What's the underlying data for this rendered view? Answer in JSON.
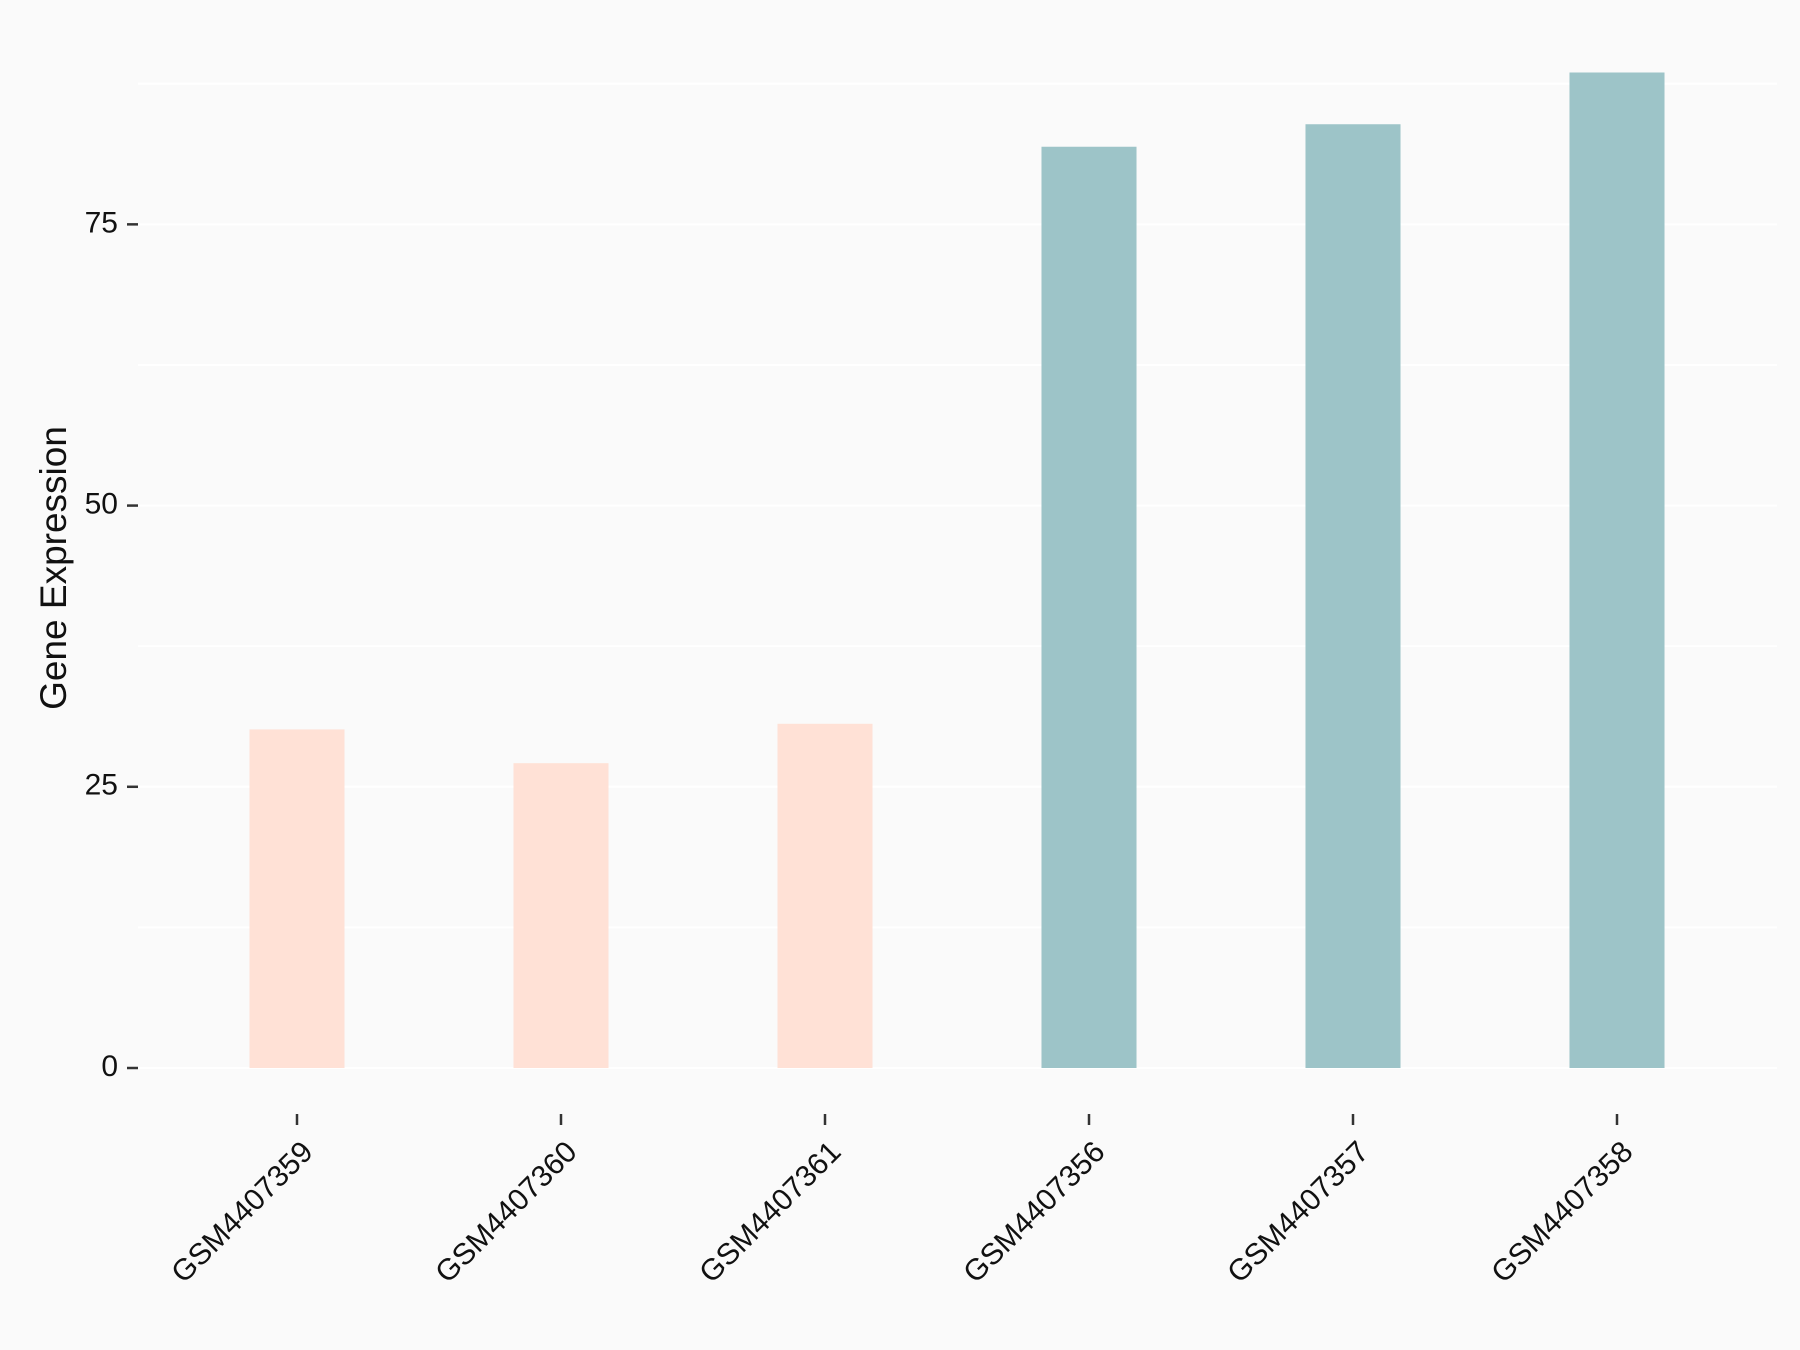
{
  "chart_data": {
    "type": "bar",
    "y_label": "Gene Expression",
    "categories": [
      "GSM4407359",
      "GSM4407360",
      "GSM4407361",
      "GSM4407356",
      "GSM4407357",
      "GSM4407358"
    ],
    "values": [
      30.1,
      27.1,
      30.6,
      81.9,
      83.9,
      88.5
    ],
    "colors": [
      "#FFE1D6",
      "#FFE1D6",
      "#FFE1D6",
      "#9DC4C8",
      "#9DC4C8",
      "#9DC4C8"
    ],
    "ylim": [
      -4.4,
      92.9
    ],
    "yticks": [
      0,
      25,
      50,
      75
    ],
    "minor_yticks": [
      12.5,
      37.5,
      62.5,
      87.5
    ],
    "grid": true
  }
}
